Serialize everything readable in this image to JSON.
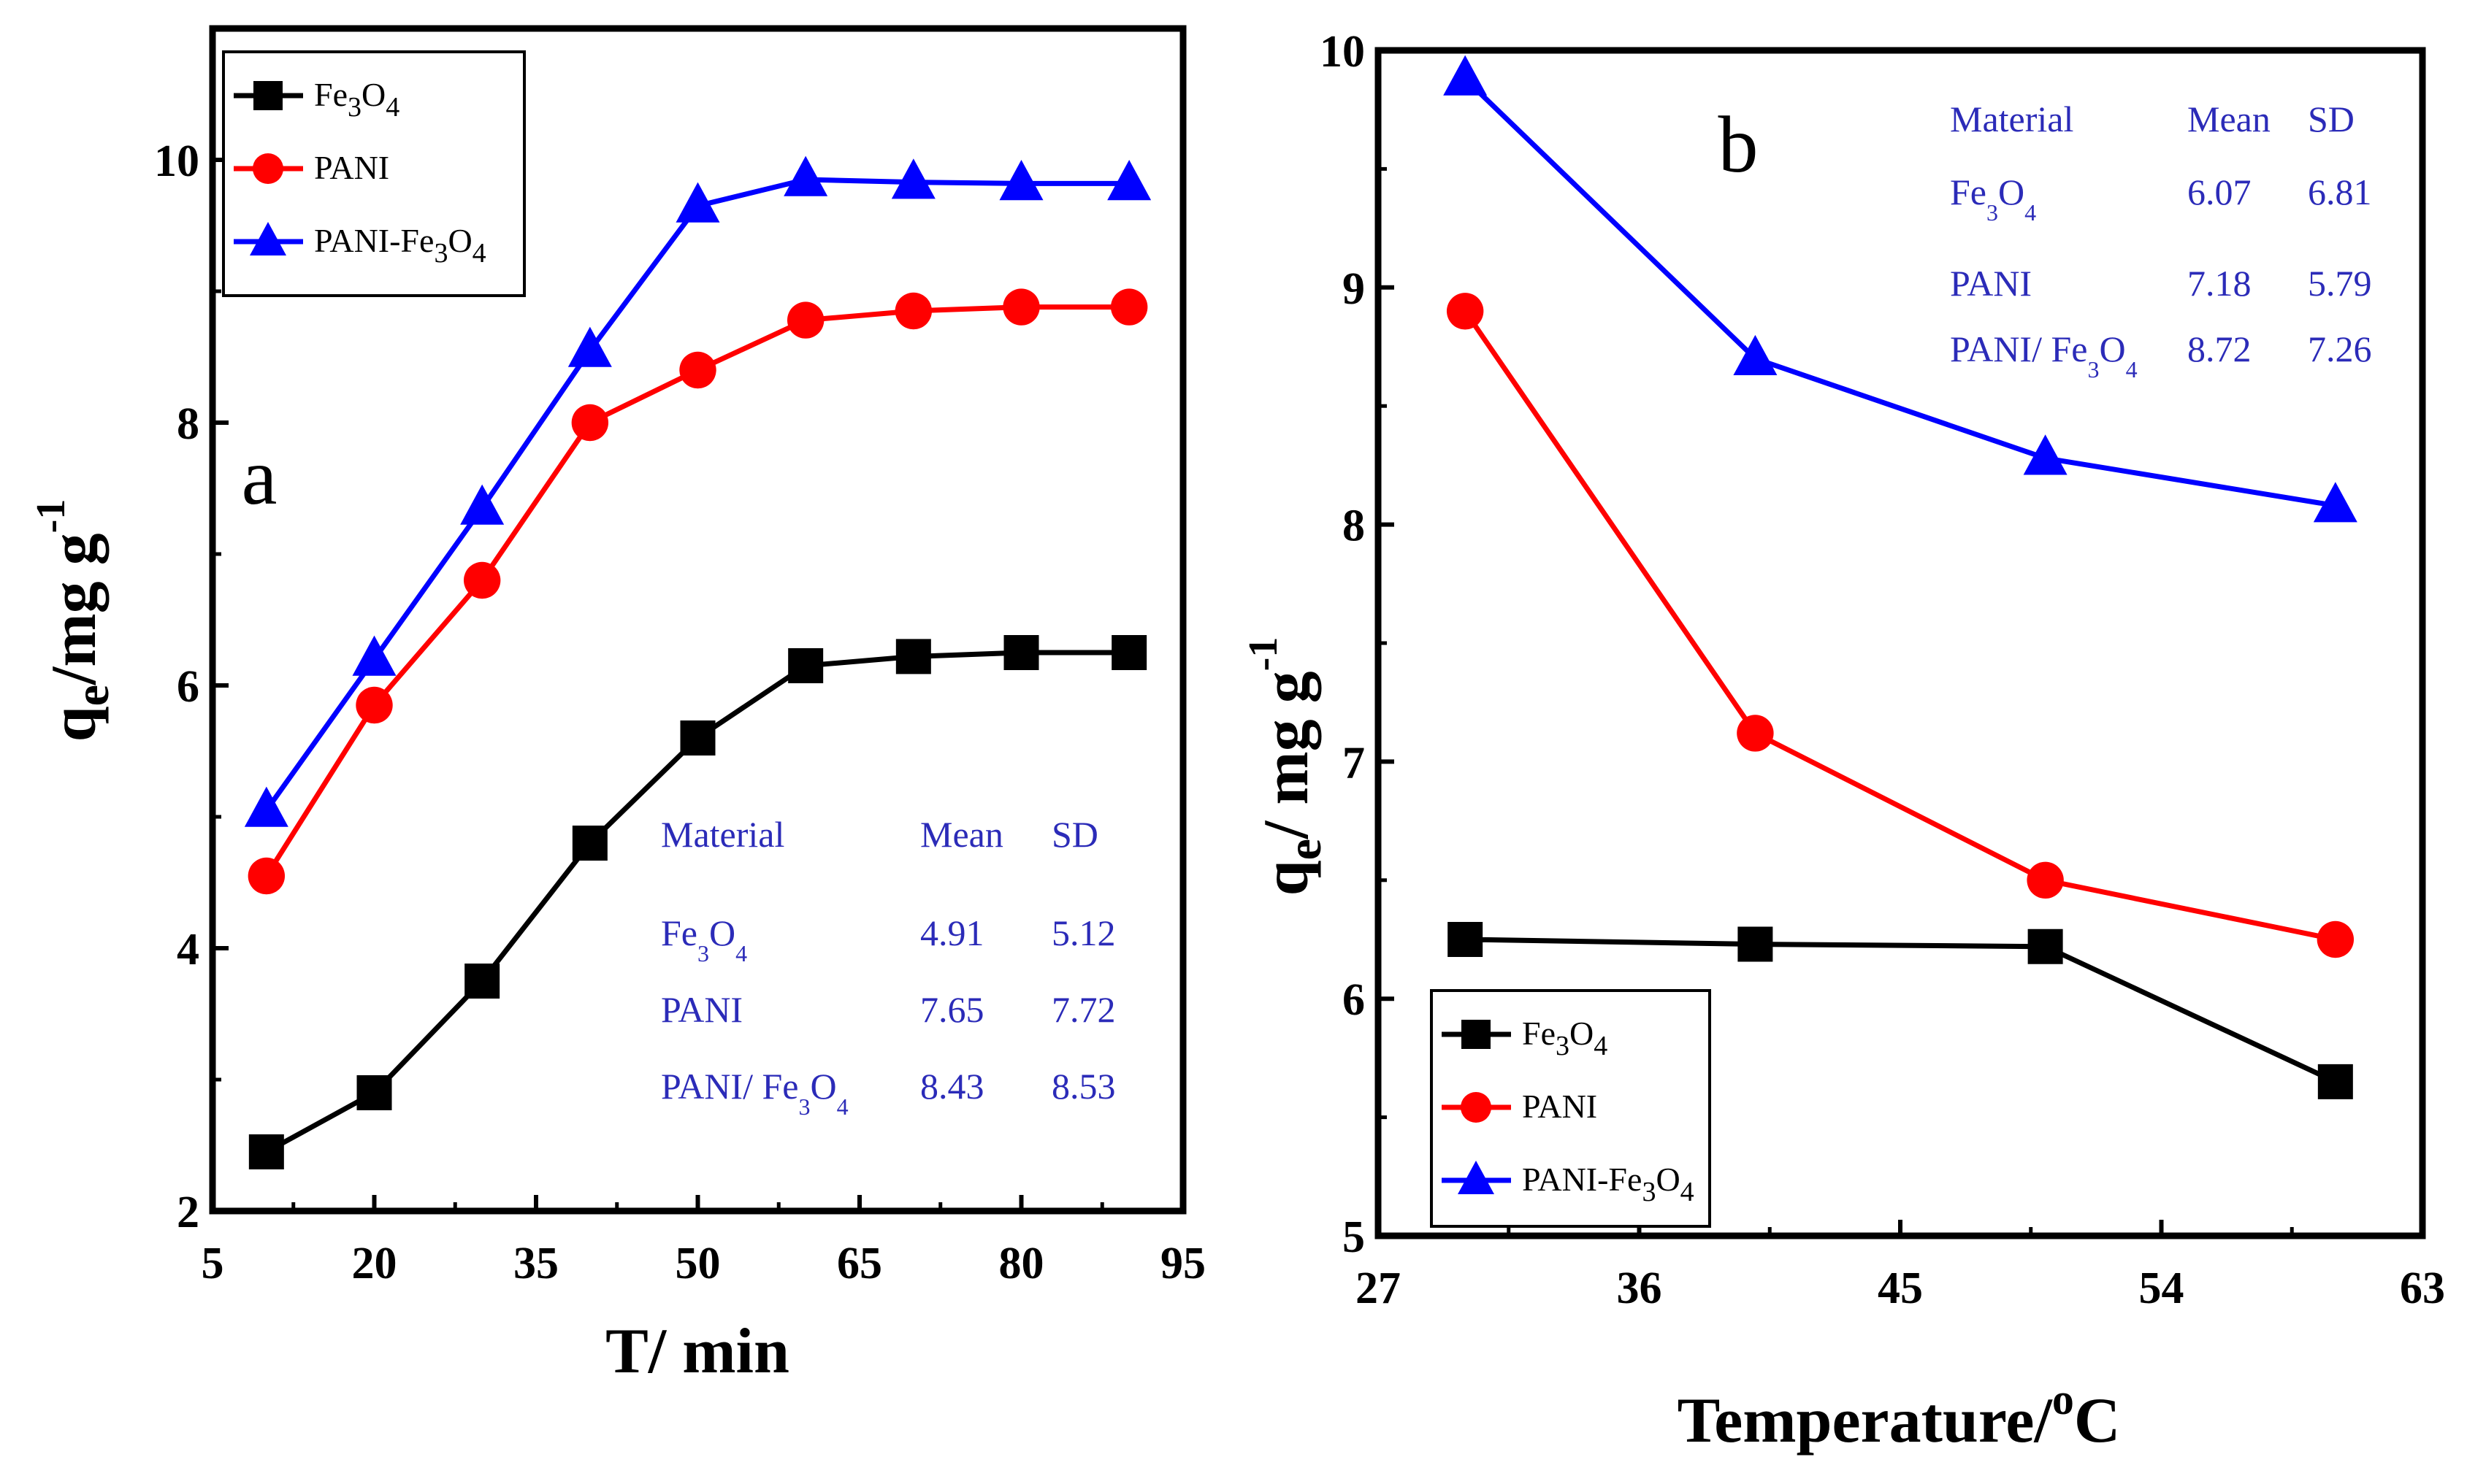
{
  "chart_data": [
    {
      "type": "line",
      "panel_label": "a",
      "xlabel": "T/ min",
      "ylabel": "qe/mg g-1",
      "ylabel_parts": {
        "main": "q",
        "sub": "e",
        "rest": "/mg g",
        "sup": "-1"
      },
      "xlim": [
        5,
        95
      ],
      "ylim": [
        2,
        11
      ],
      "xticks": [
        5,
        20,
        35,
        50,
        65,
        80,
        95
      ],
      "yticks": [
        2,
        4,
        6,
        8,
        10
      ],
      "x": [
        10,
        20,
        30,
        40,
        50,
        60,
        70,
        80,
        90
      ],
      "legend_position": "top-left",
      "series": [
        {
          "name": "Fe3O4",
          "color": "#000000",
          "marker": "square",
          "values": [
            2.45,
            2.9,
            3.75,
            4.8,
            5.6,
            6.15,
            6.22,
            6.25,
            6.25
          ]
        },
        {
          "name": "PANI",
          "color": "#ff0000",
          "marker": "circle",
          "values": [
            4.55,
            5.85,
            6.8,
            8.0,
            8.4,
            8.78,
            8.85,
            8.88,
            8.88
          ]
        },
        {
          "name": "PANI-Fe3O4",
          "color": "#0000ff",
          "marker": "triangle",
          "values": [
            5.05,
            6.2,
            7.35,
            8.55,
            9.65,
            9.85,
            9.83,
            9.82,
            9.82
          ]
        }
      ],
      "stats_table": {
        "headers": [
          "Material",
          "Mean",
          "SD"
        ],
        "rows": [
          [
            "Fe3O4",
            "4.91",
            "5.12"
          ],
          [
            "PANI",
            "7.65",
            "7.72"
          ],
          [
            "PANI/ Fe3O4",
            "8.43",
            "8.53"
          ]
        ]
      }
    },
    {
      "type": "line",
      "panel_label": "b",
      "xlabel": "Temperature/oC",
      "xlabel_parts": {
        "main": "Temperature/",
        "sup": "o",
        "rest": "C"
      },
      "ylabel": "qe/ mg g-1",
      "ylabel_parts": {
        "main": "q",
        "sub": "e",
        "rest": "/ mg g",
        "sup": "-1"
      },
      "xlim": [
        27,
        63
      ],
      "ylim": [
        5,
        10
      ],
      "xticks": [
        27,
        36,
        45,
        54,
        63
      ],
      "yticks": [
        5,
        6,
        7,
        8,
        9,
        10
      ],
      "x": [
        30,
        40,
        50,
        60
      ],
      "legend_position": "bottom-left",
      "series": [
        {
          "name": "Fe3O4",
          "color": "#000000",
          "marker": "square",
          "values": [
            6.25,
            6.23,
            6.22,
            5.65
          ]
        },
        {
          "name": "PANI",
          "color": "#ff0000",
          "marker": "circle",
          "values": [
            8.9,
            7.12,
            6.5,
            6.25
          ]
        },
        {
          "name": "PANI-Fe3O4",
          "color": "#0000ff",
          "marker": "triangle",
          "values": [
            9.88,
            8.7,
            8.28,
            8.08
          ]
        }
      ],
      "stats_table": {
        "headers": [
          "Material",
          "Mean",
          "SD"
        ],
        "rows": [
          [
            "Fe3O4",
            "6.07",
            "6.81"
          ],
          [
            "PANI",
            "7.18",
            "5.79"
          ],
          [
            "PANI/ Fe3O4",
            "8.72",
            "7.26"
          ]
        ]
      }
    }
  ]
}
